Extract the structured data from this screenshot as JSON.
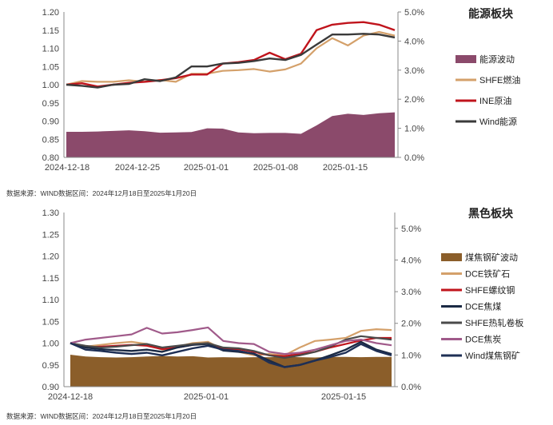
{
  "chart_data": [
    {
      "type": "line",
      "title": "能源板块",
      "source": "数据来源：WIND数据区间：2024年12月18日至2025年1月20日",
      "ylim": [
        0.8,
        1.2
      ],
      "yticks": [
        "1.20",
        "1.15",
        "1.10",
        "1.05",
        "1.00",
        "0.95",
        "0.90",
        "0.85",
        "0.80"
      ],
      "y2lim": [
        0.0,
        5.0
      ],
      "y2ticks": [
        "5.0%",
        "4.0%",
        "3.0%",
        "2.0%",
        "1.0%",
        "0.0%"
      ],
      "xticks": [
        "2024-12-18",
        "2024-12-25",
        "2025-01-01",
        "2025-01-08",
        "2025-01-15"
      ],
      "n_points": 22,
      "area": {
        "name": "能源波动",
        "color": "#8B4A6B",
        "values": [
          0.88,
          0.88,
          0.89,
          0.91,
          0.93,
          0.9,
          0.85,
          0.86,
          0.87,
          1.0,
          0.99,
          0.86,
          0.83,
          0.84,
          0.84,
          0.81,
          1.1,
          1.42,
          1.5,
          1.46,
          1.52,
          1.55
        ]
      },
      "series": [
        {
          "name": "SHFE燃油",
          "color": "#D4A06A",
          "width": 2.2,
          "values": [
            1.0,
            1.01,
            1.008,
            1.008,
            1.012,
            1.008,
            1.013,
            1.008,
            1.03,
            1.03,
            1.038,
            1.04,
            1.043,
            1.036,
            1.042,
            1.058,
            1.1,
            1.128,
            1.108,
            1.135,
            1.145,
            1.135
          ]
        },
        {
          "name": "INE原油",
          "color": "#C0141C",
          "width": 2.4,
          "values": [
            1.0,
            1.004,
            0.995,
            1.0,
            1.005,
            1.008,
            1.012,
            1.018,
            1.028,
            1.028,
            1.058,
            1.062,
            1.068,
            1.088,
            1.07,
            1.085,
            1.15,
            1.165,
            1.17,
            1.172,
            1.165,
            1.15
          ]
        },
        {
          "name": "Wind能源",
          "color": "#3A3A3A",
          "width": 2.4,
          "values": [
            1.0,
            0.997,
            0.992,
            1.0,
            1.002,
            1.015,
            1.01,
            1.02,
            1.05,
            1.05,
            1.058,
            1.06,
            1.065,
            1.072,
            1.068,
            1.082,
            1.11,
            1.138,
            1.138,
            1.14,
            1.138,
            1.13
          ]
        }
      ]
    },
    {
      "type": "line",
      "title": "黑色板块",
      "source": "数据来源：WIND数据区间：2024年12月18日至2025年1月20日",
      "ylim": [
        0.9,
        1.3
      ],
      "yticks": [
        "1.30",
        "1.25",
        "1.20",
        "1.15",
        "1.10",
        "1.05",
        "1.00",
        "0.95",
        "0.90"
      ],
      "y2lim": [
        0.0,
        5.5
      ],
      "y2ticks": [
        "5.0%",
        "4.0%",
        "3.0%",
        "2.0%",
        "1.0%",
        "0.0%"
      ],
      "xticks": [
        "2024-12-18",
        "2025-01-01",
        "2025-01-15"
      ],
      "n_points": 22,
      "area": {
        "name": "煤焦钢矿波动",
        "color": "#8B5E2A",
        "values": [
          1.01,
          0.95,
          0.93,
          0.92,
          0.93,
          0.95,
          0.97,
          0.95,
          0.96,
          0.92,
          0.93,
          0.92,
          0.93,
          0.93,
          0.94,
          0.93,
          0.92,
          0.94,
          0.94,
          0.93,
          0.94,
          0.94
        ]
      },
      "series": [
        {
          "name": "DCE铁矿石",
          "color": "#D4A06A",
          "width": 2.2,
          "values": [
            1.0,
            0.992,
            0.996,
            1.0,
            1.003,
            0.998,
            0.985,
            0.992,
            1.0,
            1.003,
            0.985,
            0.98,
            0.972,
            0.975,
            0.972,
            0.99,
            1.005,
            1.008,
            1.012,
            1.028,
            1.032,
            1.03
          ]
        },
        {
          "name": "SHFE螺纹钢",
          "color": "#C0141C",
          "width": 2.2,
          "values": [
            1.0,
            0.99,
            0.992,
            0.994,
            0.996,
            0.994,
            0.986,
            0.99,
            0.996,
            1.0,
            0.988,
            0.986,
            0.98,
            0.972,
            0.97,
            0.975,
            0.98,
            0.99,
            0.998,
            1.006,
            1.012,
            1.012
          ]
        },
        {
          "name": "DCE焦煤",
          "color": "#1B2A44",
          "width": 2.4,
          "values": [
            1.0,
            0.99,
            0.986,
            0.984,
            0.982,
            0.985,
            0.98,
            0.99,
            0.996,
            0.998,
            0.983,
            0.98,
            0.976,
            0.96,
            0.945,
            0.95,
            0.96,
            0.972,
            0.985,
            1.003,
            0.985,
            0.975
          ]
        },
        {
          "name": "SHFE热轧卷板",
          "color": "#4A4A4A",
          "width": 2.2,
          "values": [
            1.0,
            0.994,
            0.99,
            0.992,
            0.995,
            0.998,
            0.99,
            0.994,
            0.998,
            1.0,
            0.99,
            0.988,
            0.982,
            0.972,
            0.966,
            0.972,
            0.98,
            0.992,
            1.008,
            1.016,
            1.012,
            1.008
          ]
        },
        {
          "name": "DCE焦炭",
          "color": "#A05A8A",
          "width": 2.2,
          "values": [
            1.0,
            1.008,
            1.012,
            1.016,
            1.02,
            1.035,
            1.022,
            1.025,
            1.03,
            1.036,
            1.005,
            1.0,
            0.998,
            0.98,
            0.975,
            0.978,
            0.985,
            0.995,
            1.005,
            1.008,
            1.0,
            0.995
          ]
        },
        {
          "name": "Wind煤焦钢矿",
          "color": "#1E2F55",
          "width": 2.4,
          "values": [
            1.0,
            0.985,
            0.982,
            0.978,
            0.975,
            0.978,
            0.972,
            0.98,
            0.988,
            0.994,
            0.985,
            0.982,
            0.975,
            0.955,
            0.945,
            0.95,
            0.96,
            0.968,
            0.978,
            0.998,
            0.982,
            0.972
          ]
        }
      ]
    }
  ]
}
